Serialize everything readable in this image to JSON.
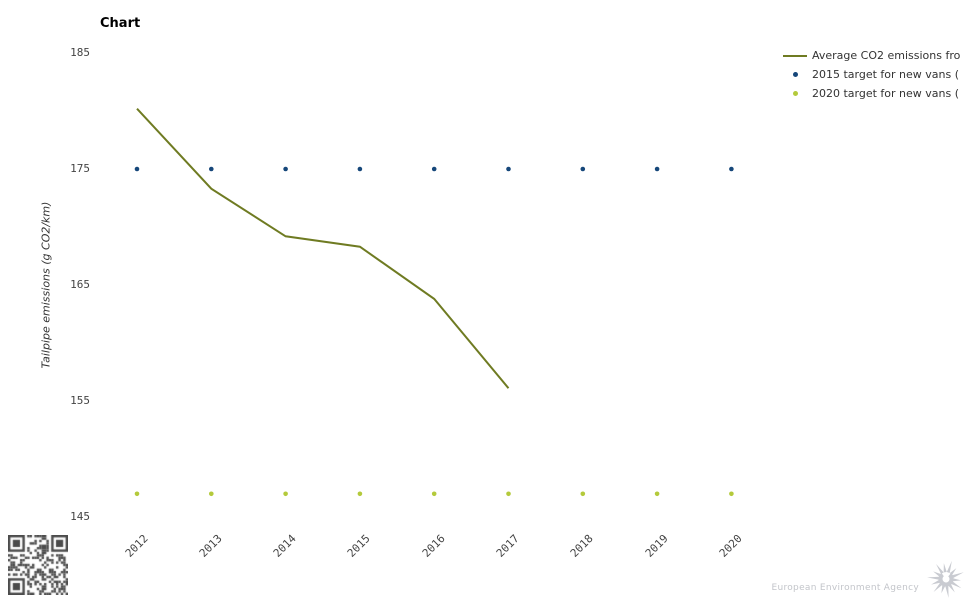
{
  "chart_data": {
    "type": "line",
    "title": "Chart",
    "xlabel": "",
    "ylabel": "Tailpipe emissions (g CO2/km)",
    "categories": [
      "2012",
      "2013",
      "2014",
      "2015",
      "2016",
      "2017",
      "2018",
      "2019",
      "2020"
    ],
    "series": [
      {
        "name": "Average CO2 emissions fro",
        "type": "line",
        "color": "#6f7b22",
        "values": [
          180.2,
          173.3,
          169.2,
          168.3,
          163.8,
          156.1,
          null,
          null,
          null
        ]
      },
      {
        "name": "2015 target for new vans (",
        "type": "scatter",
        "color": "#16477a",
        "values": [
          175,
          175,
          175,
          175,
          175,
          175,
          175,
          175,
          175
        ]
      },
      {
        "name": "2020 target for new vans (",
        "type": "scatter",
        "color": "#b4ca3b",
        "values": [
          147,
          147,
          147,
          147,
          147,
          147,
          147,
          147,
          147
        ]
      }
    ],
    "yticks": [
      185,
      175,
      165,
      155,
      145
    ],
    "ylim": [
      143,
      187
    ],
    "grid": false,
    "legend_position": "top-right"
  },
  "footer": {
    "agency_label": "European Environment Agency",
    "brand_color": "#c9cbd1"
  }
}
